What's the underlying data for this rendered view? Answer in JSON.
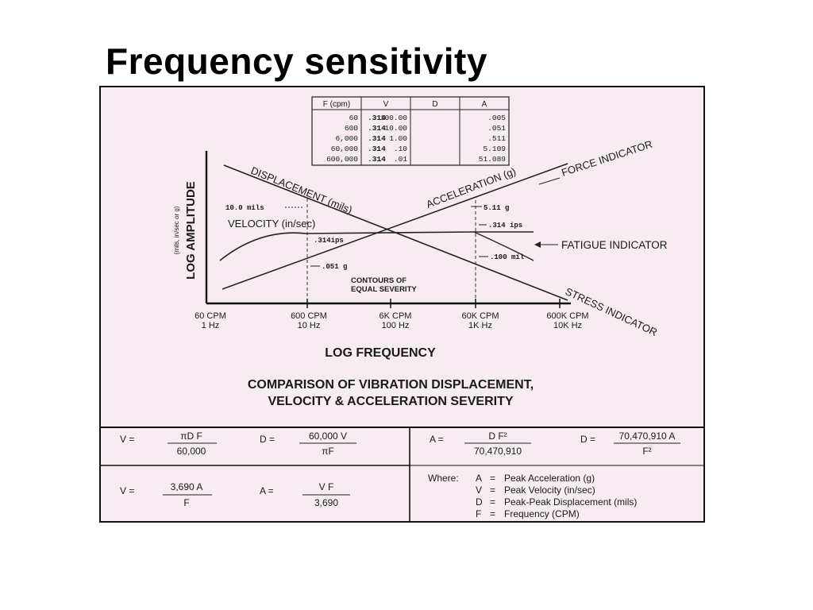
{
  "slide_title": "Frequency sensitivity",
  "table": {
    "headers": [
      "F (cpm)",
      "V",
      "D",
      "A"
    ],
    "rows": [
      [
        "60",
        ".314",
        "100.00",
        ".005"
      ],
      [
        "600",
        ".314",
        "10.00",
        ".051"
      ],
      [
        "6,000",
        ".314",
        "1.00",
        ".511"
      ],
      [
        "60,000",
        ".314",
        ".10",
        "5.109"
      ],
      [
        "600,000",
        ".314",
        ".01",
        "51.089"
      ]
    ]
  },
  "graph": {
    "y_axis_label": "LOG AMPLITUDE",
    "y_axis_sublabel": "(mils, in/sec or g)",
    "x_axis_label": "LOG   FREQUENCY",
    "x_ticks": [
      {
        "cpm": "60 CPM",
        "hz": "1 Hz"
      },
      {
        "cpm": "600 CPM",
        "hz": "10 Hz"
      },
      {
        "cpm": "6K CPM",
        "hz": "100 Hz"
      },
      {
        "cpm": "60K CPM",
        "hz": "1K Hz"
      },
      {
        "cpm": "600K CPM",
        "hz": "10K Hz"
      }
    ],
    "displacement_label": "DISPLACEMENT (mils)",
    "acceleration_label": "ACCELERATION (g)",
    "velocity_label": "VELOCITY (in/sec)",
    "force_indicator": "FORCE INDICATOR",
    "fatigue_indicator": "FATIGUE INDICATOR",
    "stress_indicator": "STRESS INDICATOR",
    "annot_disp_600": "10.0 mils",
    "annot_vel_600": ".314ips",
    "annot_acc_600": ".051 g",
    "annot_acc_60k": "5.11 g",
    "annot_vel_60k": ".314 ips",
    "annot_disp_60k": ".100 mil",
    "contours_line1": "CONTOURS OF",
    "contours_line2": "EQUAL SEVERITY"
  },
  "caption": {
    "line1": "COMPARISON OF VIBRATION DISPLACEMENT,",
    "line2": "VELOCITY & ACCELERATION SEVERITY"
  },
  "formulas": {
    "v1_lhs": "V =",
    "v1_num": "πD F",
    "v1_den": "60,000",
    "d1_lhs": "D =",
    "d1_num": "60,000 V",
    "d1_den": "πF",
    "a1_lhs": "A =",
    "a1_num": "D F²",
    "a1_den": "70,470,910",
    "d2_lhs": "D =",
    "d2_num": "70,470,910 A",
    "d2_den": "F²",
    "v2_lhs": "V =",
    "v2_num": "3,690 A",
    "v2_den": "F",
    "a2_lhs": "A =",
    "a2_num": "V F",
    "a2_den": "3,690"
  },
  "legend": {
    "where": "Where:",
    "items": [
      {
        "sym": "A",
        "eq": "=",
        "desc": "Peak Acceleration (g)"
      },
      {
        "sym": "V",
        "eq": "=",
        "desc": "Peak Velocity (in/sec)"
      },
      {
        "sym": "D",
        "eq": "=",
        "desc": "Peak-Peak Displacement (mils)"
      },
      {
        "sym": "F",
        "eq": "=",
        "desc": "Frequency (CPM)"
      }
    ]
  }
}
